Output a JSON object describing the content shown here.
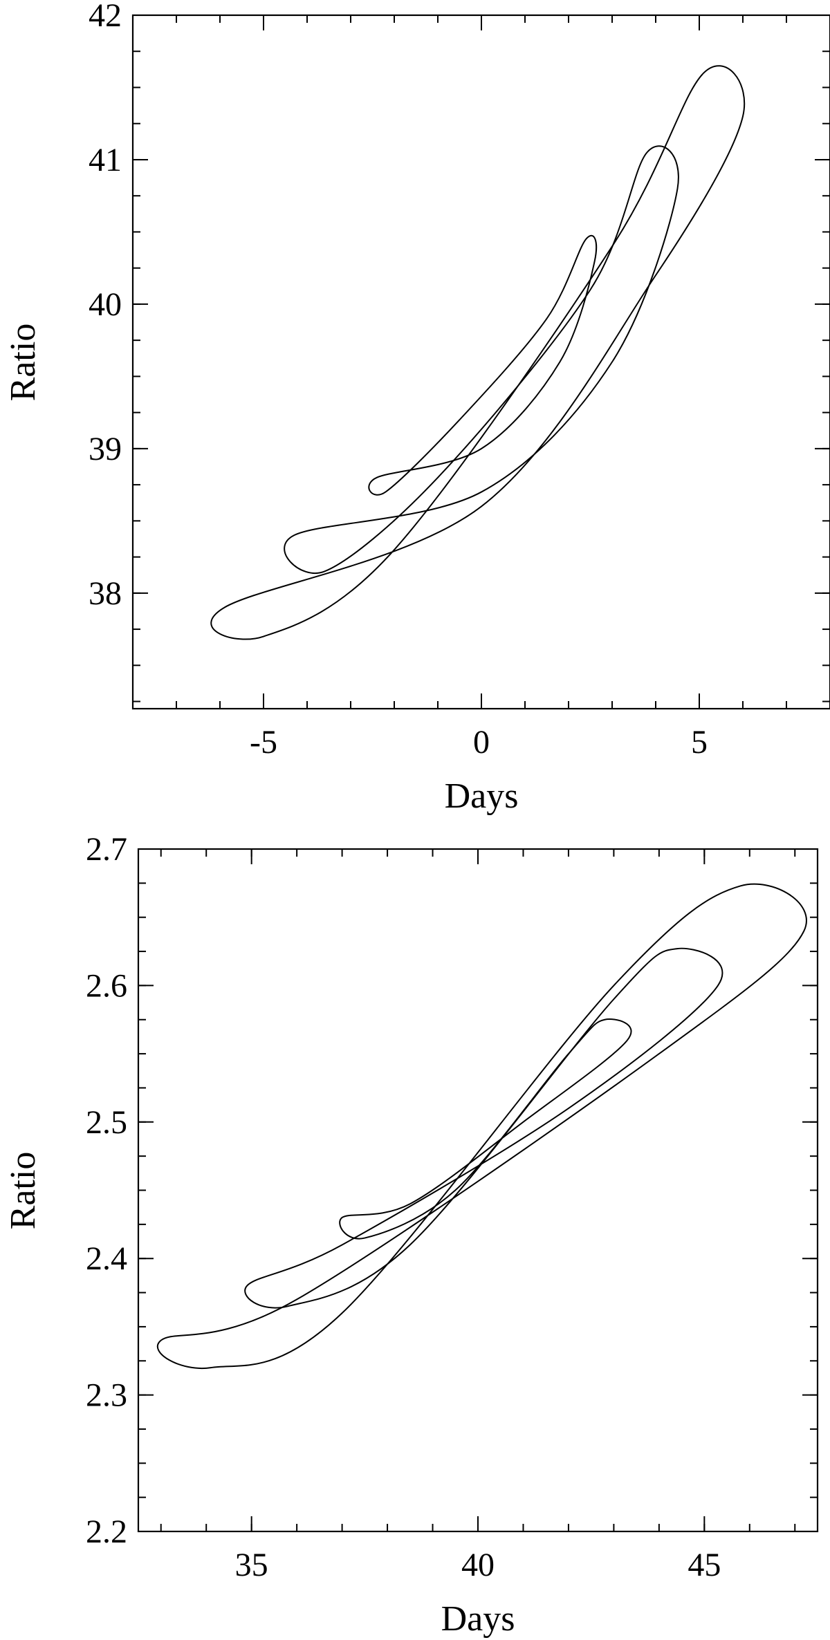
{
  "chart_data": [
    {
      "type": "contour",
      "xlabel": "Days",
      "ylabel": "Ratio",
      "xlim": [
        -8,
        8
      ],
      "ylim": [
        37.2,
        42
      ],
      "xticks": [
        -5,
        0,
        5
      ],
      "xtick_labels": [
        "-5",
        "0",
        "5"
      ],
      "yticks": [
        38,
        39,
        40,
        41,
        42
      ],
      "ytick_labels": [
        "38",
        "39",
        "40",
        "41",
        "42"
      ],
      "minor_xtick_step": 1,
      "minor_ytick_step": 0.25,
      "grid": false,
      "contours": [
        {
          "level": 1,
          "center": [
            0.2,
            39.6
          ],
          "x_extent": [
            -2.6,
            2.6
          ],
          "y_extent": [
            38.7,
            40.5
          ],
          "points_xy": [
            [
              -2.4,
              38.8
            ],
            [
              -2.2,
              38.7
            ],
            [
              -0.5,
              39.2
            ],
            [
              1.5,
              39.9
            ],
            [
              2.4,
              40.45
            ],
            [
              2.6,
              40.3
            ],
            [
              1.8,
              39.6
            ],
            [
              0.0,
              39.0
            ]
          ]
        },
        {
          "level": 2,
          "center": [
            0.1,
            39.6
          ],
          "x_extent": [
            -4.3,
            4.5
          ],
          "y_extent": [
            38.15,
            41.05
          ],
          "points_xy": [
            [
              -4.3,
              38.4
            ],
            [
              -3.6,
              38.15
            ],
            [
              -1.0,
              38.8
            ],
            [
              2.5,
              40.1
            ],
            [
              3.8,
              41.05
            ],
            [
              4.5,
              40.8
            ],
            [
              3.0,
              39.6
            ],
            [
              0.0,
              38.7
            ]
          ]
        },
        {
          "level": 3,
          "center": [
            0.1,
            39.65
          ],
          "x_extent": [
            -6.0,
            6.0
          ],
          "y_extent": [
            37.7,
            41.6
          ],
          "points_xy": [
            [
              -5.9,
              37.9
            ],
            [
              -5.0,
              37.7
            ],
            [
              -2.0,
              38.3
            ],
            [
              3.0,
              40.4
            ],
            [
              5.1,
              41.6
            ],
            [
              6.0,
              41.3
            ],
            [
              4.0,
              40.2
            ],
            [
              0.0,
              38.6
            ]
          ]
        }
      ]
    },
    {
      "type": "contour",
      "xlabel": "Days",
      "ylabel": "Ratio",
      "xlim": [
        32.5,
        47.5
      ],
      "ylim": [
        2.2,
        2.7
      ],
      "xticks": [
        35,
        40,
        45
      ],
      "xtick_labels": [
        "35",
        "40",
        "45"
      ],
      "yticks": [
        2.2,
        2.3,
        2.4,
        2.5,
        2.6,
        2.7
      ],
      "ytick_labels": [
        "2.2",
        "2.3",
        "2.4",
        "2.5",
        "2.6",
        "2.7"
      ],
      "minor_xtick_step": 1,
      "minor_ytick_step": 0.025,
      "grid": false,
      "contours": [
        {
          "level": 1,
          "center": [
            40.2,
            2.495
          ],
          "x_extent": [
            37.0,
            43.3
          ],
          "y_extent": [
            2.415,
            2.575
          ],
          "points_xy": [
            [
              37.0,
              2.43
            ],
            [
              37.5,
              2.415
            ],
            [
              39.5,
              2.45
            ],
            [
              42.0,
              2.55
            ],
            [
              42.8,
              2.575
            ],
            [
              43.3,
              2.56
            ],
            [
              41.0,
              2.5
            ],
            [
              38.5,
              2.44
            ]
          ]
        },
        {
          "level": 2,
          "center": [
            40.1,
            2.495
          ],
          "x_extent": [
            34.9,
            45.3
          ],
          "y_extent": [
            2.365,
            2.627
          ],
          "points_xy": [
            [
              34.9,
              2.38
            ],
            [
              35.8,
              2.365
            ],
            [
              38.5,
              2.41
            ],
            [
              43.0,
              2.59
            ],
            [
              44.4,
              2.627
            ],
            [
              45.3,
              2.6
            ],
            [
              42.0,
              2.51
            ],
            [
              37.0,
              2.41
            ]
          ]
        },
        {
          "level": 3,
          "center": [
            40.1,
            2.496
          ],
          "x_extent": [
            33.0,
            47.2
          ],
          "y_extent": [
            2.32,
            2.673
          ],
          "points_xy": [
            [
              33.0,
              2.34
            ],
            [
              34.1,
              2.32
            ],
            [
              37.0,
              2.36
            ],
            [
              43.0,
              2.6
            ],
            [
              45.8,
              2.673
            ],
            [
              47.2,
              2.64
            ],
            [
              44.0,
              2.55
            ],
            [
              36.0,
              2.37
            ]
          ]
        }
      ]
    }
  ]
}
